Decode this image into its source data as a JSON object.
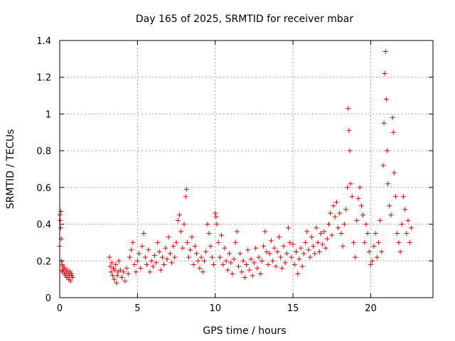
{
  "chart_data": {
    "type": "scatter",
    "title": "Day 165 of 2025, SRMTID for receiver mbar",
    "xlabel": "GPS time / hours",
    "ylabel": "SRMTID / TECUs",
    "xlim": [
      0,
      24
    ],
    "ylim": [
      0,
      1.4
    ],
    "xticks": [
      0,
      5,
      10,
      15,
      20
    ],
    "yticks": [
      0,
      0.2,
      0.4,
      0.6,
      0.8,
      1,
      1.2,
      1.4
    ],
    "xtick_labels": [
      "0",
      "5",
      "10",
      "15",
      "20"
    ],
    "ytick_labels": [
      "0",
      "0.2",
      "0.4",
      "0.6",
      "0.8",
      "1",
      "1.2",
      "1.4"
    ],
    "grid": true,
    "marker": "+",
    "color": "#e00000",
    "series": [
      {
        "name": "mbar",
        "points": [
          [
            0.0,
            0.28
          ],
          [
            0.02,
            0.45
          ],
          [
            0.04,
            0.42
          ],
          [
            0.06,
            0.38
          ],
          [
            0.08,
            0.47
          ],
          [
            0.1,
            0.32
          ],
          [
            0.12,
            0.2
          ],
          [
            0.14,
            0.15
          ],
          [
            0.16,
            0.18
          ],
          [
            0.18,
            0.14
          ],
          [
            0.22,
            0.17
          ],
          [
            0.26,
            0.15
          ],
          [
            0.3,
            0.13
          ],
          [
            0.34,
            0.16
          ],
          [
            0.38,
            0.12
          ],
          [
            0.42,
            0.14
          ],
          [
            0.46,
            0.11
          ],
          [
            0.5,
            0.15
          ],
          [
            0.54,
            0.13
          ],
          [
            0.58,
            0.1
          ],
          [
            0.62,
            0.12
          ],
          [
            0.66,
            0.14
          ],
          [
            0.7,
            0.09
          ],
          [
            0.74,
            0.13
          ],
          [
            0.78,
            0.12
          ],
          [
            0.82,
            0.11
          ],
          [
            3.2,
            0.22
          ],
          [
            3.25,
            0.17
          ],
          [
            3.3,
            0.14
          ],
          [
            3.35,
            0.19
          ],
          [
            3.4,
            0.12
          ],
          [
            3.45,
            0.16
          ],
          [
            3.5,
            0.1
          ],
          [
            3.55,
            0.15
          ],
          [
            3.6,
            0.18
          ],
          [
            3.65,
            0.08
          ],
          [
            3.7,
            0.12
          ],
          [
            3.75,
            0.14
          ],
          [
            3.8,
            0.2
          ],
          [
            3.9,
            0.15
          ],
          [
            4.0,
            0.11
          ],
          [
            4.1,
            0.14
          ],
          [
            4.2,
            0.09
          ],
          [
            4.3,
            0.16
          ],
          [
            4.4,
            0.13
          ],
          [
            4.5,
            0.22
          ],
          [
            4.6,
            0.26
          ],
          [
            4.7,
            0.3
          ],
          [
            4.8,
            0.18
          ],
          [
            4.9,
            0.14
          ],
          [
            5.0,
            0.2
          ],
          [
            5.1,
            0.24
          ],
          [
            5.2,
            0.16
          ],
          [
            5.3,
            0.28
          ],
          [
            5.4,
            0.35
          ],
          [
            5.5,
            0.22
          ],
          [
            5.6,
            0.18
          ],
          [
            5.7,
            0.26
          ],
          [
            5.8,
            0.14
          ],
          [
            5.9,
            0.2
          ],
          [
            6.0,
            0.17
          ],
          [
            6.1,
            0.23
          ],
          [
            6.2,
            0.19
          ],
          [
            6.3,
            0.3
          ],
          [
            6.4,
            0.25
          ],
          [
            6.5,
            0.15
          ],
          [
            6.6,
            0.22
          ],
          [
            6.7,
            0.18
          ],
          [
            6.8,
            0.27
          ],
          [
            6.9,
            0.21
          ],
          [
            7.0,
            0.33
          ],
          [
            7.1,
            0.24
          ],
          [
            7.2,
            0.19
          ],
          [
            7.3,
            0.28
          ],
          [
            7.4,
            0.22
          ],
          [
            7.5,
            0.3
          ],
          [
            7.6,
            0.42
          ],
          [
            7.7,
            0.45
          ],
          [
            7.8,
            0.36
          ],
          [
            7.9,
            0.27
          ],
          [
            8.0,
            0.4
          ],
          [
            8.1,
            0.55
          ],
          [
            8.15,
            0.59
          ],
          [
            8.2,
            0.3
          ],
          [
            8.3,
            0.22
          ],
          [
            8.4,
            0.26
          ],
          [
            8.5,
            0.33
          ],
          [
            8.6,
            0.18
          ],
          [
            8.7,
            0.28
          ],
          [
            8.8,
            0.24
          ],
          [
            8.9,
            0.2
          ],
          [
            9.0,
            0.16
          ],
          [
            9.1,
            0.22
          ],
          [
            9.2,
            0.14
          ],
          [
            9.3,
            0.2
          ],
          [
            9.4,
            0.25
          ],
          [
            9.5,
            0.4
          ],
          [
            9.6,
            0.35
          ],
          [
            9.7,
            0.28
          ],
          [
            9.8,
            0.22
          ],
          [
            9.9,
            0.18
          ],
          [
            10.0,
            0.46
          ],
          [
            10.05,
            0.44
          ],
          [
            10.1,
            0.4
          ],
          [
            10.2,
            0.3
          ],
          [
            10.3,
            0.22
          ],
          [
            10.4,
            0.34
          ],
          [
            10.5,
            0.18
          ],
          [
            10.6,
            0.27
          ],
          [
            10.7,
            0.2
          ],
          [
            10.8,
            0.15
          ],
          [
            10.9,
            0.24
          ],
          [
            11.0,
            0.19
          ],
          [
            11.1,
            0.13
          ],
          [
            11.2,
            0.21
          ],
          [
            11.3,
            0.3
          ],
          [
            11.4,
            0.36
          ],
          [
            11.5,
            0.17
          ],
          [
            11.6,
            0.24
          ],
          [
            11.7,
            0.14
          ],
          [
            11.8,
            0.2
          ],
          [
            11.9,
            0.11
          ],
          [
            12.0,
            0.18
          ],
          [
            12.1,
            0.26
          ],
          [
            12.2,
            0.15
          ],
          [
            12.3,
            0.21
          ],
          [
            12.4,
            0.12
          ],
          [
            12.5,
            0.19
          ],
          [
            12.6,
            0.27
          ],
          [
            12.7,
            0.16
          ],
          [
            12.8,
            0.22
          ],
          [
            12.9,
            0.13
          ],
          [
            13.0,
            0.2
          ],
          [
            13.1,
            0.28
          ],
          [
            13.2,
            0.36
          ],
          [
            13.3,
            0.25
          ],
          [
            13.4,
            0.18
          ],
          [
            13.5,
            0.24
          ],
          [
            13.6,
            0.31
          ],
          [
            13.7,
            0.2
          ],
          [
            13.8,
            0.27
          ],
          [
            13.9,
            0.17
          ],
          [
            14.0,
            0.25
          ],
          [
            14.1,
            0.33
          ],
          [
            14.2,
            0.22
          ],
          [
            14.3,
            0.16
          ],
          [
            14.4,
            0.28
          ],
          [
            14.5,
            0.19
          ],
          [
            14.6,
            0.24
          ],
          [
            14.7,
            0.38
          ],
          [
            14.8,
            0.3
          ],
          [
            14.9,
            0.22
          ],
          [
            15.0,
            0.29
          ],
          [
            15.1,
            0.18
          ],
          [
            15.2,
            0.25
          ],
          [
            15.3,
            0.13
          ],
          [
            15.4,
            0.21
          ],
          [
            15.5,
            0.27
          ],
          [
            15.6,
            0.17
          ],
          [
            15.7,
            0.24
          ],
          [
            15.8,
            0.3
          ],
          [
            15.9,
            0.36
          ],
          [
            16.0,
            0.26
          ],
          [
            16.1,
            0.22
          ],
          [
            16.2,
            0.33
          ],
          [
            16.3,
            0.28
          ],
          [
            16.4,
            0.24
          ],
          [
            16.5,
            0.38
          ],
          [
            16.6,
            0.3
          ],
          [
            16.7,
            0.25
          ],
          [
            16.8,
            0.35
          ],
          [
            16.9,
            0.29
          ],
          [
            17.0,
            0.36
          ],
          [
            17.1,
            0.27
          ],
          [
            17.2,
            0.32
          ],
          [
            17.3,
            0.4
          ],
          [
            17.4,
            0.46
          ],
          [
            17.5,
            0.34
          ],
          [
            17.6,
            0.5
          ],
          [
            17.7,
            0.44
          ],
          [
            17.8,
            0.52
          ],
          [
            17.9,
            0.38
          ],
          [
            18.0,
            0.46
          ],
          [
            18.1,
            0.35
          ],
          [
            18.2,
            0.28
          ],
          [
            18.3,
            0.4
          ],
          [
            18.4,
            0.48
          ],
          [
            18.5,
            0.6
          ],
          [
            18.55,
            1.03
          ],
          [
            18.6,
            0.91
          ],
          [
            18.65,
            0.8
          ],
          [
            18.7,
            0.62
          ],
          [
            18.8,
            0.55
          ],
          [
            18.9,
            0.3
          ],
          [
            19.0,
            0.22
          ],
          [
            19.1,
            0.42
          ],
          [
            19.2,
            0.54
          ],
          [
            19.3,
            0.6
          ],
          [
            19.4,
            0.5
          ],
          [
            19.5,
            0.45
          ],
          [
            19.6,
            0.3
          ],
          [
            19.7,
            0.4
          ],
          [
            19.8,
            0.35
          ],
          [
            19.9,
            0.25
          ],
          [
            20.0,
            0.18
          ],
          [
            20.1,
            0.2
          ],
          [
            20.2,
            0.28
          ],
          [
            20.3,
            0.35
          ],
          [
            20.4,
            0.22
          ],
          [
            20.5,
            0.3
          ],
          [
            20.6,
            0.42
          ],
          [
            20.7,
            0.25
          ],
          [
            20.8,
            0.72
          ],
          [
            20.85,
            0.95
          ],
          [
            20.9,
            1.22
          ],
          [
            20.95,
            1.34
          ],
          [
            21.0,
            1.08
          ],
          [
            21.05,
            0.8
          ],
          [
            21.1,
            0.62
          ],
          [
            21.2,
            0.5
          ],
          [
            21.3,
            0.45
          ],
          [
            21.4,
            0.98
          ],
          [
            21.45,
            0.9
          ],
          [
            21.5,
            0.68
          ],
          [
            21.6,
            0.55
          ],
          [
            21.7,
            0.35
          ],
          [
            21.8,
            0.3
          ],
          [
            21.9,
            0.25
          ],
          [
            22.0,
            0.4
          ],
          [
            22.1,
            0.55
          ],
          [
            22.2,
            0.48
          ],
          [
            22.3,
            0.35
          ],
          [
            22.4,
            0.42
          ],
          [
            22.5,
            0.3
          ],
          [
            22.6,
            0.38
          ]
        ]
      }
    ]
  }
}
